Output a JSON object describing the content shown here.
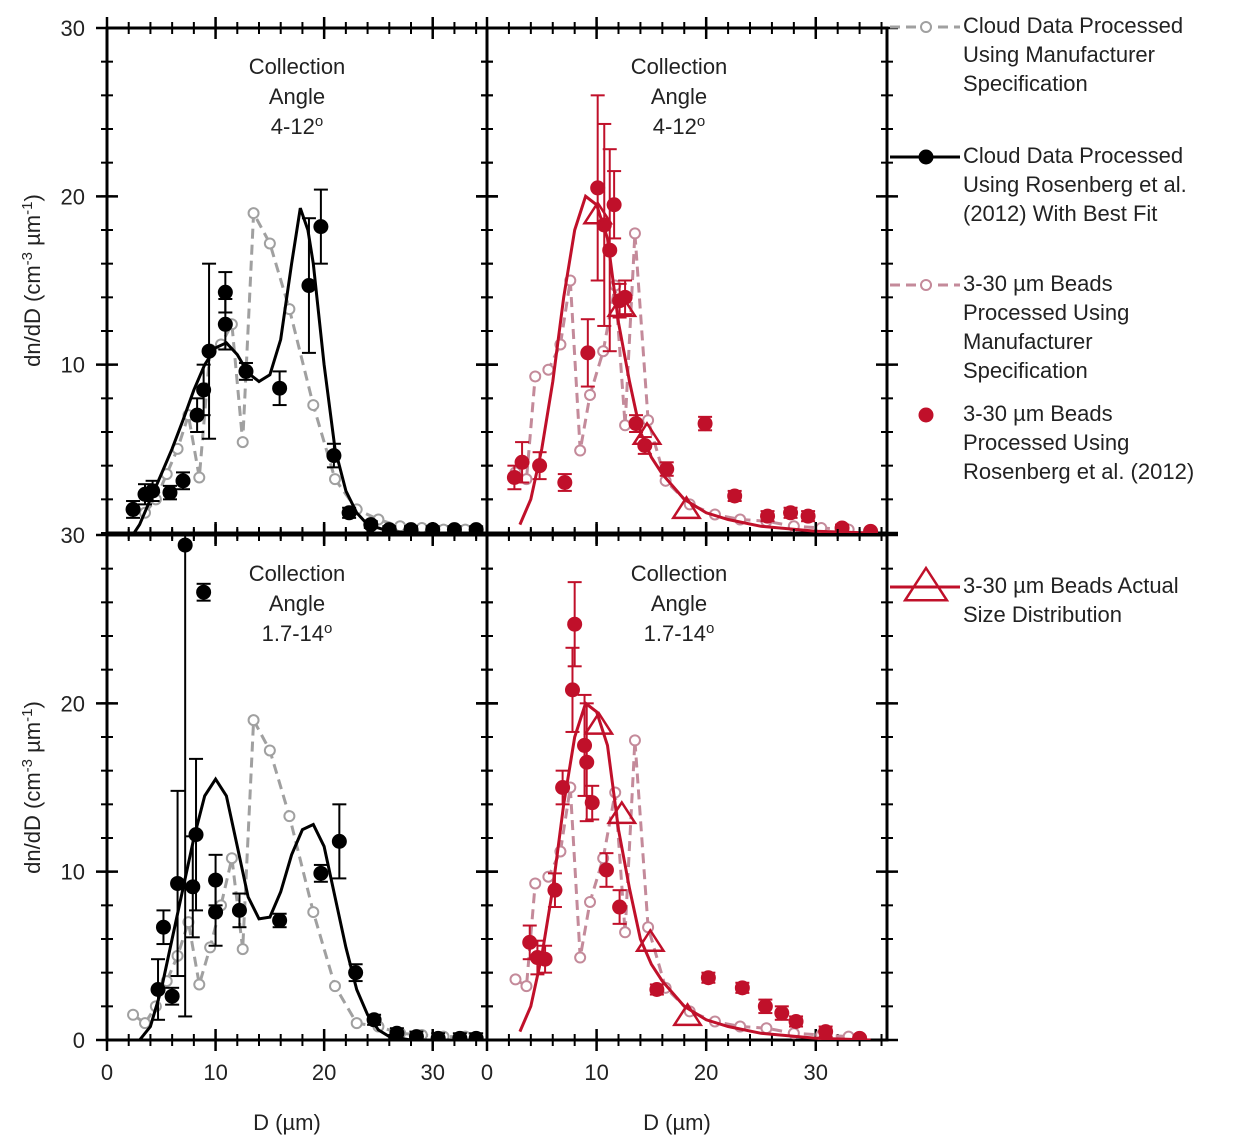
{
  "chart_data": [
    {
      "type": "line",
      "xlim": [
        0,
        35
      ],
      "ylim": [
        0,
        30
      ],
      "xticks": [
        0,
        10,
        20,
        30
      ],
      "yticks": [
        10,
        20,
        30
      ],
      "minor_step": 2,
      "xtick_labels": false,
      "ytick_labels": true,
      "ylabel": [
        "dn/dD (cm",
        "-3",
        " µm",
        "-1",
        ")"
      ],
      "annotation": "Collection\nAngle\n4-12",
      "annotation_sup": "o",
      "series": [
        {
          "name": "Cloud Data Processed\nUsing Manufacturer\nSpecification",
          "color": "#a0a0a0",
          "line": "dashed",
          "marker": "open-circle",
          "x": [
            3.5,
            4.5,
            5.5,
            6.5,
            7.5,
            8.5,
            9.5,
            10.5,
            11.5,
            12.5,
            13.5,
            15,
            16.8,
            19,
            21,
            23,
            25,
            27,
            29,
            31,
            33
          ],
          "values": [
            1.2,
            2,
            3.5,
            5,
            7,
            3.3,
            10.9,
            11.2,
            12.4,
            5.4,
            19,
            17.2,
            13.3,
            7.6,
            3.2,
            1.4,
            0.8,
            0.4,
            0.3,
            0.2,
            0.2
          ]
        },
        {
          "name": "Cloud Data Processed\nUsing Rosenberg et al.\n(2012) With Best Fit",
          "color": "#000000",
          "line": null,
          "marker": "circle",
          "x": [
            2.4,
            3.5,
            4.2,
            5.8,
            7,
            8.3,
            8.9,
            9.4,
            10.9,
            10.9,
            12.8,
            15.9,
            18.6,
            19.7,
            20.9,
            22.3,
            24.3,
            26,
            28,
            30,
            32,
            34
          ],
          "values": [
            1.4,
            2.3,
            2.5,
            2.4,
            3.1,
            7,
            8.5,
            10.8,
            14.3,
            12.4,
            9.6,
            8.6,
            14.7,
            18.2,
            4.6,
            1.2,
            0.5,
            0.2,
            0.2,
            0.2,
            0.2,
            0.2
          ],
          "errors": [
            0.5,
            0.6,
            0.6,
            0.4,
            0.5,
            1,
            1.5,
            5.2,
            1.2,
            1.5,
            0.5,
            1,
            4,
            2.2,
            0.7,
            0.3,
            0.2,
            0.2,
            0.2,
            0.2,
            0.2,
            0.2
          ],
          "fit_x": [
            2.5,
            3,
            4,
            5,
            6,
            7,
            8,
            9,
            10,
            11,
            12,
            13,
            14,
            15,
            16,
            17,
            17.8,
            18.5,
            19,
            20,
            21,
            22,
            23,
            24,
            26,
            28,
            30,
            34
          ],
          "fit_values": [
            0,
            0.5,
            2,
            3.5,
            5,
            6.7,
            8.5,
            10,
            11,
            11.3,
            10.6,
            9.5,
            9,
            9.4,
            11.5,
            16,
            19.3,
            18,
            16,
            10,
            5,
            2.5,
            1.2,
            0.5,
            0.1,
            0,
            0,
            0
          ]
        }
      ]
    },
    {
      "type": "line",
      "xlim": [
        0,
        36.5
      ],
      "ylim": [
        0,
        30
      ],
      "xticks": [
        0,
        10,
        20,
        30
      ],
      "yticks": [
        0,
        10,
        20,
        30
      ],
      "minor_step": 2,
      "xtick_labels": false,
      "ytick_labels": false,
      "annotation": "Collection\nAngle\n4-12",
      "annotation_sup": "o",
      "series": [
        {
          "name": "3-30 µm Beads\nProcessed Using\nManufacturer\nSpecification",
          "color": "#c48a9a",
          "line": "dashed",
          "marker": "open-circle",
          "x": [
            2.6,
            3.6,
            4.4,
            5.6,
            6.7,
            7.6,
            8.5,
            9.4,
            10.6,
            11.7,
            12.6,
            13.5,
            14.7,
            16.3,
            18.5,
            20.8,
            23.1,
            25.5,
            28,
            30.5,
            33
          ],
          "values": [
            3.6,
            3.2,
            9.3,
            9.7,
            11.2,
            15,
            4.9,
            8.2,
            10.8,
            14.7,
            6.4,
            17.8,
            6.7,
            3.1,
            1.7,
            1.1,
            0.8,
            0.7,
            0.4,
            0.3,
            0.2
          ]
        },
        {
          "name": "3-30 µm Beads\nProcessed Using\nRosenberg et al. (2012)",
          "color": "#c0102a",
          "line": null,
          "marker": "circle",
          "x": [
            2.5,
            3.2,
            4.8,
            7.1,
            9.2,
            10.1,
            10.7,
            11.2,
            11.6,
            12.1,
            12.6,
            13.6,
            14.4,
            16.4,
            19.9,
            22.6,
            25.6,
            27.7,
            29.3,
            32.4,
            35
          ],
          "values": [
            3.3,
            4.2,
            4.0,
            3.0,
            10.7,
            20.5,
            18.3,
            16.8,
            19.5,
            13.8,
            14.0,
            6.5,
            5.2,
            3.8,
            6.5,
            2.2,
            1.0,
            1.2,
            1.0,
            0.3,
            0.1
          ],
          "errors": [
            0.7,
            1.2,
            0.8,
            0.5,
            2,
            5.5,
            6,
            6,
            2,
            1,
            1,
            0.5,
            0.5,
            0.4,
            0.4,
            0.3,
            0.3,
            0.3,
            0.3,
            0.2,
            0.1
          ]
        },
        {
          "name": "3-30 µm Beads Actual\nSize Distribution",
          "color": "#c0102a",
          "line": "solid",
          "marker": null,
          "x": [
            3,
            4,
            5,
            6,
            7,
            8,
            9,
            10,
            11,
            12,
            13,
            14,
            15,
            16,
            18,
            20,
            22,
            25,
            30,
            35
          ],
          "values": [
            0.5,
            2,
            5,
            9,
            14,
            18,
            20,
            19.5,
            17.5,
            12.5,
            9,
            6,
            4.5,
            3.5,
            2,
            1.2,
            0.8,
            0.4,
            0.1,
            0
          ],
          "marker_x": [
            10.1,
            12.3,
            14.6,
            18.2
          ],
          "marker_values": [
            18.9,
            13.4,
            5.8,
            1.4
          ]
        }
      ]
    },
    {
      "type": "line",
      "xlim": [
        0,
        35
      ],
      "ylim": [
        0,
        30
      ],
      "xticks": [
        0,
        10,
        20,
        30
      ],
      "yticks": [
        0,
        10,
        20,
        30
      ],
      "minor_step": 2,
      "xtick_labels": true,
      "ytick_labels": true,
      "ylabel": [
        "dn/dD (cm",
        "-3",
        " µm",
        "-1",
        ")"
      ],
      "xlabel": "D (µm)",
      "annotation": "Collection\nAngle\n1.7-14",
      "annotation_sup": "o",
      "series": [
        {
          "color": "#a0a0a0",
          "line": "dashed",
          "marker": "open-circle",
          "x": [
            2.4,
            3.5,
            4.5,
            5.5,
            6.5,
            7.5,
            8.5,
            9.5,
            10.5,
            11.5,
            12.5,
            13.5,
            15,
            16.8,
            19,
            21,
            23,
            25,
            27,
            29,
            31,
            33
          ],
          "values": [
            1.5,
            1.0,
            2,
            3.5,
            5,
            7,
            3.3,
            5.5,
            8,
            10.8,
            5.4,
            19,
            17.2,
            13.3,
            7.6,
            3.2,
            1,
            0.8,
            0.4,
            0.3,
            0.2,
            0.2
          ]
        },
        {
          "color": "#000000",
          "line": null,
          "marker": "circle",
          "x": [
            4.7,
            5.2,
            6.0,
            6.5,
            7.2,
            7.9,
            8.2,
            8.9,
            10,
            10,
            12.2,
            15.9,
            19.7,
            21.4,
            22.9,
            24.6,
            26.7,
            28.5,
            30.5,
            32.5,
            34
          ],
          "values": [
            3,
            6.7,
            2.6,
            9.3,
            29.4,
            9.1,
            12.2,
            26.6,
            9.5,
            7.6,
            7.7,
            7.1,
            9.9,
            11.8,
            4,
            1.2,
            0.4,
            0.2,
            0.1,
            0.1,
            0.1
          ],
          "errors": [
            1.8,
            1,
            0.5,
            5.5,
            28,
            3,
            4.5,
            0.5,
            1.5,
            2,
            1,
            0.4,
            0.5,
            2.2,
            0.5,
            0.3,
            0.3,
            0.3,
            0.3,
            0.3,
            0.3
          ],
          "fit_x": [
            3,
            4,
            5,
            6,
            7,
            8,
            9,
            10,
            11,
            12,
            13,
            14,
            15,
            16,
            17,
            18,
            19,
            20,
            21,
            22,
            23,
            24,
            25,
            26,
            28,
            34
          ],
          "fit_values": [
            0,
            0.8,
            3,
            6,
            9,
            12,
            14.5,
            15.5,
            14.5,
            11.5,
            8.5,
            7.2,
            7.3,
            8.8,
            11,
            12.5,
            12.8,
            11.5,
            8.5,
            5.5,
            3,
            1.5,
            0.6,
            0.2,
            0,
            0
          ]
        }
      ]
    },
    {
      "type": "line",
      "xlim": [
        0,
        36.5
      ],
      "ylim": [
        0,
        30
      ],
      "xticks": [
        0,
        10,
        20,
        30
      ],
      "yticks": [
        0,
        10,
        20,
        30
      ],
      "minor_step": 2,
      "xtick_labels": true,
      "ytick_labels": false,
      "xlabel": "D (µm)",
      "annotation": "Collection\nAngle\n1.7-14",
      "annotation_sup": "o",
      "series": [
        {
          "color": "#c48a9a",
          "line": "dashed",
          "marker": "open-circle",
          "x": [
            2.6,
            3.6,
            4.4,
            5.6,
            6.7,
            7.6,
            8.5,
            9.4,
            10.6,
            11.7,
            12.6,
            13.5,
            14.7,
            16.3,
            18.5,
            20.8,
            23.1,
            25.5,
            28,
            30.5,
            33
          ],
          "values": [
            3.6,
            3.2,
            9.3,
            9.7,
            11.2,
            15,
            4.9,
            8.2,
            10.8,
            14.7,
            6.4,
            17.8,
            6.7,
            3.1,
            1.7,
            1.1,
            0.8,
            0.7,
            0.4,
            0.3,
            0.2
          ]
        },
        {
          "color": "#c0102a",
          "line": null,
          "marker": "circle",
          "x": [
            3.9,
            4.6,
            5.3,
            6.2,
            6.9,
            7.8,
            8.0,
            8.9,
            9.1,
            9.6,
            10.9,
            12.1,
            15.5,
            20.2,
            23.3,
            25.4,
            26.9,
            28.2,
            30.9,
            34
          ],
          "values": [
            5.8,
            4.9,
            4.8,
            8.9,
            15,
            20.8,
            24.7,
            17.5,
            16.5,
            14.1,
            10.1,
            7.9,
            3,
            3.7,
            3.1,
            2,
            1.6,
            1.1,
            0.5,
            0.1
          ],
          "errors": [
            1,
            1,
            0.8,
            1,
            1,
            2.5,
            2.5,
            3,
            3.5,
            1,
            1,
            1,
            0.3,
            0.3,
            0.3,
            0.4,
            0.4,
            0.3,
            0.3,
            0.1
          ]
        },
        {
          "color": "#c0102a",
          "line": "solid",
          "marker": null,
          "x": [
            3,
            4,
            5,
            6,
            7,
            8,
            9,
            10,
            11,
            12,
            13,
            14,
            15,
            16,
            18,
            20,
            22,
            25,
            30,
            35
          ],
          "values": [
            0.5,
            2,
            5,
            9,
            14,
            18,
            20,
            19.5,
            17.5,
            12.5,
            9,
            6,
            4.5,
            3.5,
            2,
            1.2,
            0.8,
            0.4,
            0.1,
            0
          ],
          "marker_x": [
            10.2,
            12.3,
            14.9,
            18.3
          ],
          "marker_values": [
            18.7,
            13.4,
            5.8,
            1.4
          ]
        }
      ]
    }
  ]
}
